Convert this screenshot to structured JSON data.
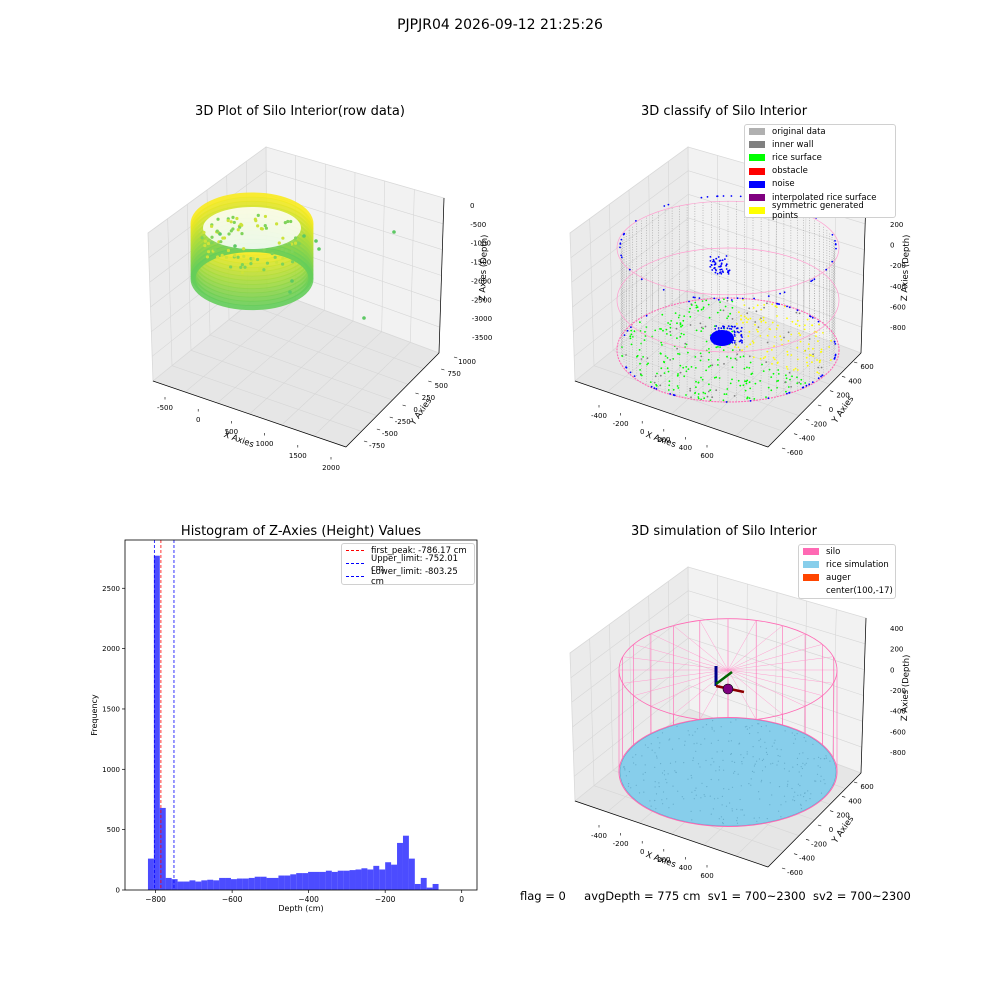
{
  "suptitle": "PJPJR04 2026-09-12 21:25:26",
  "footer": {
    "flag": "flag = 0",
    "avg_depth": "avgDepth = 775 cm",
    "sv1": "sv1 = 700~2300",
    "sv2": "sv2 = 700~2300"
  },
  "colors": {
    "original_data": "#b0b0b0",
    "inner_wall": "#808080",
    "rice_surface": "#00ff00",
    "obstacle": "#ff0000",
    "noise": "#0000ff",
    "interpolated": "#800080",
    "symmetric": "#ffff00",
    "silo": "#ff69b4",
    "rice_sim": "#87ceeb",
    "auger": "#ff4500",
    "hist_bar": "#0000ff"
  },
  "chart_data": [
    {
      "type": "scatter",
      "projection": "3d",
      "title": "3D Plot of Silo Interior(row data)",
      "xlabel": "X Axies",
      "ylabel": "Y Axies",
      "zlabel": "Z Axies (Depth)",
      "xticks": [
        "-500",
        "0",
        "500",
        "1000",
        "1500",
        "2000"
      ],
      "yticks": [
        "-750",
        "-500",
        "-250",
        "0",
        "250",
        "500",
        "750",
        "1000"
      ],
      "zticks": [
        "0",
        "-500",
        "-1000",
        "-1500",
        "-2000",
        "-2500",
        "-3000",
        "-3500"
      ],
      "xlim": [
        -600,
        2000
      ],
      "ylim": [
        -750,
        1000
      ],
      "zlim": [
        -3500,
        0
      ],
      "colormap": "viridis (yellow to green)"
    },
    {
      "type": "scatter",
      "projection": "3d",
      "title": "3D classify of Silo Interior",
      "xlabel": "X Axies",
      "ylabel": "Y Axies",
      "zlabel": "Z Axies (Depth)",
      "xticks": [
        "-400",
        "-200",
        "0",
        "200",
        "400",
        "600"
      ],
      "yticks": [
        "-600",
        "-400",
        "-200",
        "0",
        "200",
        "400",
        "600"
      ],
      "zticks": [
        "200",
        "0",
        "-200",
        "-400",
        "-600",
        "-800"
      ],
      "legend_position": "top-right",
      "legend": [
        {
          "label": "original data",
          "color": "#b0b0b0"
        },
        {
          "label": "inner wall",
          "color": "#808080"
        },
        {
          "label": "rice surface",
          "color": "#00ff00"
        },
        {
          "label": "obstacle",
          "color": "#ff0000"
        },
        {
          "label": "noise",
          "color": "#0000ff"
        },
        {
          "label": "interpolated rice surface",
          "color": "#800080"
        },
        {
          "label": "symmetric generated points",
          "color": "#ffff00"
        }
      ]
    },
    {
      "type": "bar",
      "title": "Histogram of Z-Axies (Height) Values",
      "xlabel": "Depth (cm)",
      "ylabel": "Frequency",
      "xlim": [
        -880,
        40
      ],
      "ylim": [
        0,
        2900
      ],
      "xticks": [
        -800,
        -600,
        -400,
        -200,
        0
      ],
      "yticks": [
        0,
        500,
        1000,
        1500,
        2000,
        2500
      ],
      "bin_width": 15.5,
      "bins": [
        {
          "x": -820,
          "value": 260
        },
        {
          "x": -804.5,
          "value": 2770
        },
        {
          "x": -789,
          "value": 680
        },
        {
          "x": -773.5,
          "value": 100
        },
        {
          "x": -758,
          "value": 90
        },
        {
          "x": -742.5,
          "value": 70
        },
        {
          "x": -727,
          "value": 70
        },
        {
          "x": -711.5,
          "value": 80
        },
        {
          "x": -696,
          "value": 70
        },
        {
          "x": -680.5,
          "value": 80
        },
        {
          "x": -665,
          "value": 85
        },
        {
          "x": -649.5,
          "value": 80
        },
        {
          "x": -634,
          "value": 100
        },
        {
          "x": -618.5,
          "value": 100
        },
        {
          "x": -603,
          "value": 90
        },
        {
          "x": -587.5,
          "value": 95
        },
        {
          "x": -572,
          "value": 95
        },
        {
          "x": -556.5,
          "value": 100
        },
        {
          "x": -541,
          "value": 110
        },
        {
          "x": -525.5,
          "value": 110
        },
        {
          "x": -510,
          "value": 100
        },
        {
          "x": -494.5,
          "value": 100
        },
        {
          "x": -479,
          "value": 120
        },
        {
          "x": -463.5,
          "value": 120
        },
        {
          "x": -448,
          "value": 130
        },
        {
          "x": -432.5,
          "value": 140
        },
        {
          "x": -417,
          "value": 140
        },
        {
          "x": -401.5,
          "value": 150
        },
        {
          "x": -386,
          "value": 150
        },
        {
          "x": -370.5,
          "value": 150
        },
        {
          "x": -355,
          "value": 160
        },
        {
          "x": -339.5,
          "value": 150
        },
        {
          "x": -324,
          "value": 160
        },
        {
          "x": -308.5,
          "value": 160
        },
        {
          "x": -293,
          "value": 165
        },
        {
          "x": -277.5,
          "value": 170
        },
        {
          "x": -262,
          "value": 180
        },
        {
          "x": -246.5,
          "value": 170
        },
        {
          "x": -231,
          "value": 200
        },
        {
          "x": -215.5,
          "value": 170
        },
        {
          "x": -200,
          "value": 230
        },
        {
          "x": -184.5,
          "value": 210
        },
        {
          "x": -169,
          "value": 390
        },
        {
          "x": -153.5,
          "value": 450
        },
        {
          "x": -138,
          "value": 260
        },
        {
          "x": -122.5,
          "value": 50
        },
        {
          "x": -107,
          "value": 100
        },
        {
          "x": -91.5,
          "value": 20
        },
        {
          "x": -76,
          "value": 50
        }
      ],
      "vlines": [
        {
          "x": -786.17,
          "color": "#ff0000",
          "label": "first_peak: -786.17 cm"
        },
        {
          "x": -752.01,
          "color": "#0000ff",
          "label": "Upper_limit: -752.01 cm"
        },
        {
          "x": -803.25,
          "color": "#0000ff",
          "label": "Lower_limit: -803.25 cm"
        }
      ],
      "legend_position": "top-right"
    },
    {
      "type": "scatter",
      "projection": "3d",
      "title": "3D simulation of Silo Interior",
      "xlabel": "X Axies",
      "ylabel": "Y Axies",
      "zlabel": "Z Axies (Depth)",
      "xticks": [
        "-400",
        "-200",
        "0",
        "200",
        "400",
        "600"
      ],
      "yticks": [
        "-600",
        "-400",
        "-200",
        "0",
        "200",
        "400",
        "600"
      ],
      "zticks": [
        "400",
        "200",
        "0",
        "-200",
        "-400",
        "-600",
        "-800"
      ],
      "legend_position": "top-right",
      "legend": [
        {
          "label": "silo",
          "color": "#ff69b4"
        },
        {
          "label": "rice simulation",
          "color": "#87ceeb"
        },
        {
          "label": "auger",
          "color": "#ff4500"
        },
        {
          "label": "center(100,-17)",
          "color": ""
        }
      ]
    }
  ]
}
